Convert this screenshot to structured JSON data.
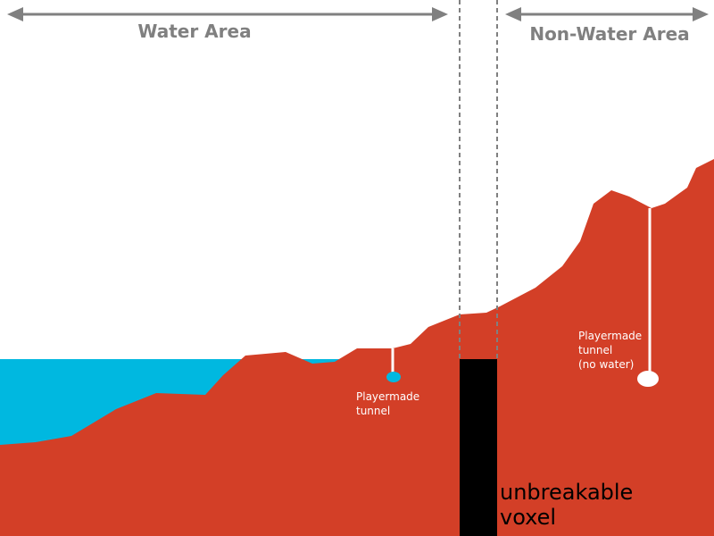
{
  "labels": {
    "water_area": "Water Area",
    "non_water_area": "Non-Water Area",
    "tunnel_water": "Playermade\ntunnel",
    "tunnel_dry": "Playermade\ntunnel\n(no water)",
    "voxel": "unbreakable\nvoxel"
  }
}
